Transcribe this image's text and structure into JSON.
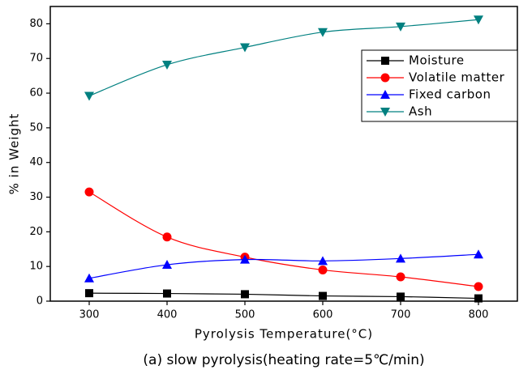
{
  "chart_data": {
    "type": "line",
    "x_label": "Pyrolysis Temperature(°C)",
    "y_label": "% in Weight",
    "caption": "(a) slow pyrolysis(heating rate=5℃/min)",
    "x": [
      300,
      400,
      500,
      600,
      700,
      800
    ],
    "series": [
      {
        "name": "Moisture",
        "color": "#000000",
        "marker": "square",
        "values": [
          2.3,
          2.2,
          2.0,
          1.5,
          1.3,
          0.8
        ]
      },
      {
        "name": "Volatile matter",
        "color": "#ff0000",
        "marker": "circle",
        "values": [
          31.5,
          18.5,
          12.7,
          9.0,
          7.0,
          4.2
        ]
      },
      {
        "name": "Fixed carbon",
        "color": "#0000ff",
        "marker": "triangle-up",
        "values": [
          6.6,
          10.5,
          12.0,
          11.6,
          12.3,
          13.5
        ]
      },
      {
        "name": "Ash",
        "color": "#008080",
        "marker": "triangle-down",
        "values": [
          59.2,
          68.2,
          73.2,
          77.6,
          79.2,
          81.2
        ]
      }
    ],
    "xlim": [
      250,
      850
    ],
    "xticks": [
      300,
      400,
      500,
      600,
      700,
      800
    ],
    "ylim": [
      0,
      85
    ],
    "yticks": [
      0,
      10,
      20,
      30,
      40,
      50,
      60,
      70,
      80
    ],
    "legend": "upper-right",
    "grid": false
  }
}
